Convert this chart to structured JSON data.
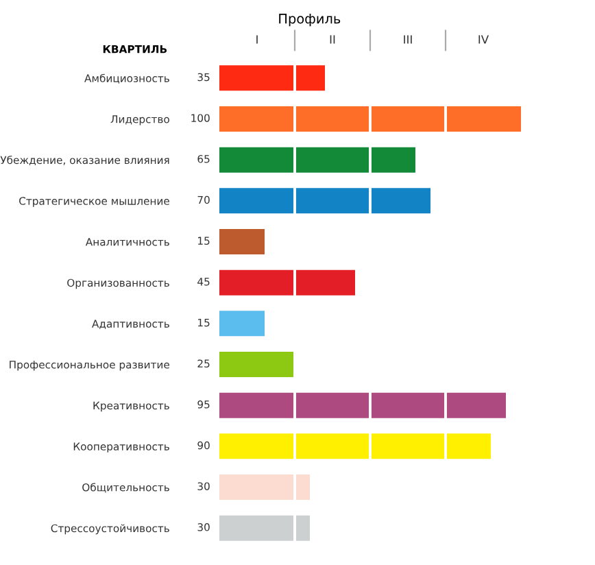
{
  "chart_data": {
    "type": "bar",
    "orientation": "horizontal",
    "title": "Профиль",
    "xlabel": "КВАРТИЛЬ",
    "categories": [
      "Амбициозность",
      "Лидерство",
      "Убеждение, оказание влияния",
      "Стратегическое мышление",
      "Аналитичность",
      "Организованность",
      "Адаптивность",
      "Профессиональное развитие",
      "Креативность",
      "Кооперативность",
      "Общительность",
      "Стрессоустойчивость"
    ],
    "values": [
      35,
      100,
      65,
      70,
      15,
      45,
      15,
      25,
      95,
      90,
      30,
      30
    ],
    "colors": [
      "#ff2a12",
      "#ff6e28",
      "#138a38",
      "#1283c4",
      "#bd5a2e",
      "#e31e26",
      "#5bbdee",
      "#8dc912",
      "#ad4a80",
      "#fff000",
      "#fcdbd0",
      "#cdd0d1"
    ],
    "annotations": [
      "I",
      "II",
      "III",
      "IV"
    ],
    "grid": "x",
    "data_labels": true
  }
}
